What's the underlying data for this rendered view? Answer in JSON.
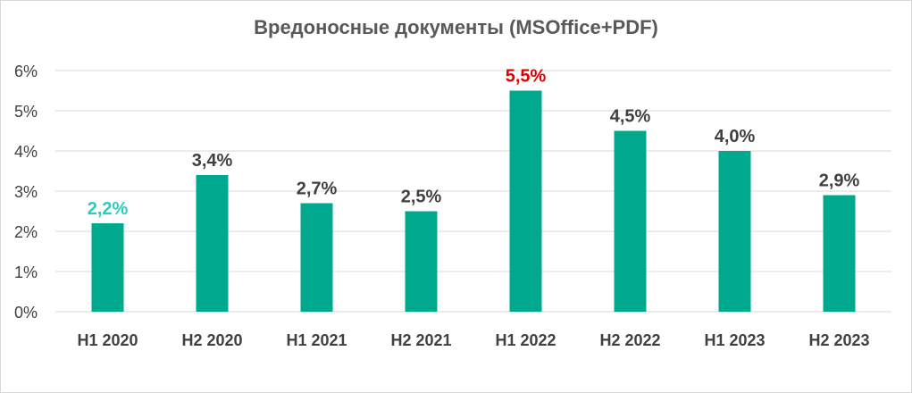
{
  "chart_data": {
    "type": "bar",
    "title": "Вредоносные документы (MSOffice+PDF)",
    "categories": [
      "H1 2020",
      "H2 2020",
      "H1 2021",
      "H2 2021",
      "H1 2022",
      "H2 2022",
      "H1 2023",
      "H2 2023"
    ],
    "values": [
      2.2,
      3.4,
      2.7,
      2.5,
      5.5,
      4.5,
      4.0,
      2.9
    ],
    "data_labels": [
      "2,2%",
      "3,4%",
      "2,7%",
      "2,5%",
      "5,5%",
      "4,5%",
      "4,0%",
      "2,9%"
    ],
    "label_colors": [
      "#2ecbbd",
      "#404040",
      "#404040",
      "#404040",
      "#e00000",
      "#404040",
      "#404040",
      "#404040"
    ],
    "ylim": [
      0,
      6
    ],
    "yticks": [
      0,
      1,
      2,
      3,
      4,
      5,
      6
    ],
    "ytick_labels": [
      "0%",
      "1%",
      "2%",
      "3%",
      "4%",
      "5%",
      "6%"
    ],
    "xlabel": "",
    "ylabel": "",
    "grid": true,
    "legend": "none",
    "bar_color": "#00a88e",
    "grid_color": "#d9d9d9"
  }
}
